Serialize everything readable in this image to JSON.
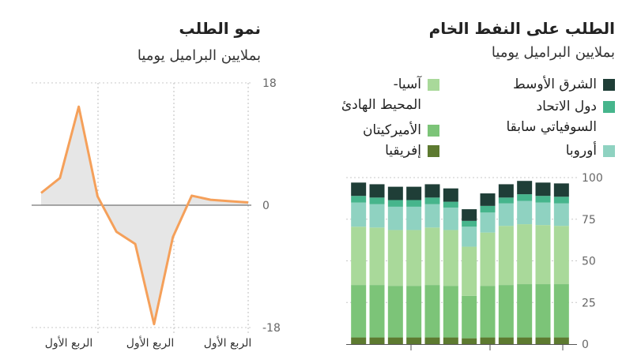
{
  "charts": {
    "growth": {
      "title": "نمو الطلب",
      "subtitle": "بملايين البراميل يوميا"
    },
    "demand": {
      "title": "الطلب على النفط الخام",
      "subtitle": "بملايين البراميل يوميا"
    }
  },
  "colors": {
    "middle_east": "#1f3e37",
    "former_ussr": "#46b58c",
    "europe": "#8fd2c1",
    "asia_pacific": "#a9d99a",
    "americas": "#7cc478",
    "africa": "#5d7a30",
    "line": "#f5a05a",
    "fill": "#e6e6e6"
  },
  "chart_data": [
    {
      "type": "area",
      "title": "نمو الطلب",
      "subtitle": "بملايين البراميل يوميا",
      "x": [
        1,
        2,
        3,
        4,
        5,
        6,
        7,
        8,
        9,
        10,
        11,
        12
      ],
      "series": [
        {
          "values": [
            1.8,
            4,
            14.5,
            1.3,
            -3.9,
            -5.7,
            -17.5,
            -4.7,
            1.4,
            0.8,
            0.6,
            0.4
          ]
        }
      ],
      "ylim": [
        -18,
        18
      ],
      "yticks": [
        "18",
        "0",
        "-18"
      ],
      "xtick_labels": [
        "الربع الأول",
        "الربع الأول",
        "الربع الأول"
      ],
      "grid": "vertical"
    },
    {
      "type": "bar",
      "stacked": true,
      "title": "الطلب على النفط الخام",
      "subtitle": "بملايين البراميل يوميا",
      "categories": [
        "1",
        "2",
        "3",
        "4",
        "5",
        "6",
        "7",
        "8",
        "9",
        "10",
        "11",
        "12"
      ],
      "ylim": [
        0,
        100
      ],
      "yticks": [
        "100",
        "75",
        "50",
        "25",
        "0"
      ],
      "legend": [
        {
          "key": "middle_east",
          "label": "الشرق الأوسط"
        },
        {
          "key": "asia_pacific",
          "label": "آسيا-\nالمحيط الهادئ"
        },
        {
          "key": "former_ussr",
          "label": "دول الاتحاد\nالسوفياتي سابقا"
        },
        {
          "key": "americas",
          "label": "الأميركيتان"
        },
        {
          "key": "europe",
          "label": "أوروبا"
        },
        {
          "key": "africa",
          "label": "إفريقيا"
        }
      ],
      "series": [
        {
          "key": "africa",
          "name": "إفريقيا",
          "values": [
            4,
            4,
            4,
            4,
            4,
            4,
            3.5,
            4,
            4,
            4,
            4,
            4
          ]
        },
        {
          "key": "americas",
          "name": "الأميركيتان",
          "values": [
            31.5,
            31.5,
            31,
            31,
            31.5,
            31,
            25.5,
            31,
            31.5,
            32,
            32,
            32
          ]
        },
        {
          "key": "asia_pacific",
          "name": "آسيا-المحيط الهادئ",
          "values": [
            35,
            34.5,
            33.5,
            33.5,
            34.5,
            33.5,
            29.5,
            32,
            35.5,
            36,
            35.5,
            35
          ]
        },
        {
          "key": "europe",
          "name": "أوروبا",
          "values": [
            14.5,
            14,
            14,
            14,
            14,
            13.5,
            12,
            12,
            13.5,
            14,
            13.5,
            13.5
          ]
        },
        {
          "key": "former_ussr",
          "name": "دول الاتحاد السوفياتي سابقا",
          "values": [
            4,
            4,
            4,
            4,
            4,
            3.5,
            3.5,
            4,
            3.5,
            4,
            4,
            4
          ]
        },
        {
          "key": "middle_east",
          "name": "الشرق الأوسط",
          "values": [
            8,
            8,
            8,
            8,
            8,
            8,
            7,
            7.5,
            8,
            8,
            8,
            8
          ]
        }
      ]
    }
  ]
}
